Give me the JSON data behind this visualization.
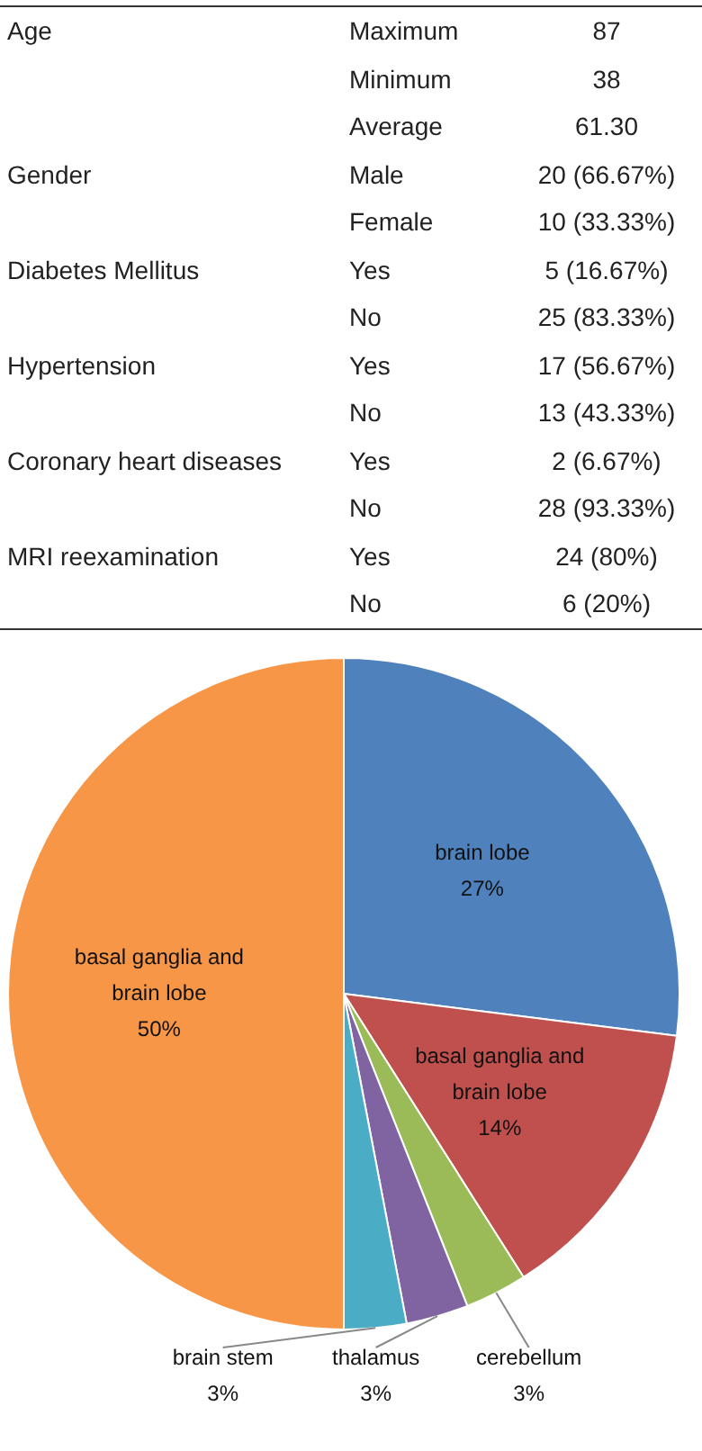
{
  "chart_data": [
    {
      "type": "other",
      "cells": [
        [
          "Age",
          "Maximum",
          "87"
        ],
        [
          null,
          "Minimum",
          "38"
        ],
        [
          null,
          "Average",
          "61.30"
        ],
        [
          "Gender",
          "Male",
          "20 (66.67%)"
        ],
        [
          null,
          "Female",
          "10 (33.33%)"
        ],
        [
          "Diabetes Mellitus",
          "Yes",
          "5 (16.67%)"
        ],
        [
          null,
          "No",
          "25 (83.33%)"
        ],
        [
          "Hypertension",
          "Yes",
          "17 (56.67%)"
        ],
        [
          null,
          "No",
          "13 (43.33%)"
        ],
        [
          "Coronary heart diseases",
          "Yes",
          "2 (6.67%)"
        ],
        [
          null,
          "No",
          "28 (93.33%)"
        ],
        [
          "MRI reexamination",
          "Yes",
          "24 (80%)"
        ],
        [
          null,
          "No",
          "6 (20%)"
        ]
      ]
    },
    {
      "type": "pie",
      "categories": [
        "brain lobe",
        "basal ganglia and brain lobe",
        "cerebellum",
        "thalamus",
        "brain stem",
        "basal ganglia and brain lobe"
      ],
      "values": [
        27,
        14,
        3,
        3,
        3,
        50
      ],
      "value_labels": [
        "27%",
        "14%",
        "3%",
        "3%",
        "3%",
        "50%"
      ],
      "colors": [
        "#4f81bd",
        "#c0504d",
        "#9bbb59",
        "#8064a2",
        "#4bacc6",
        "#f79646"
      ],
      "legend": false
    }
  ]
}
